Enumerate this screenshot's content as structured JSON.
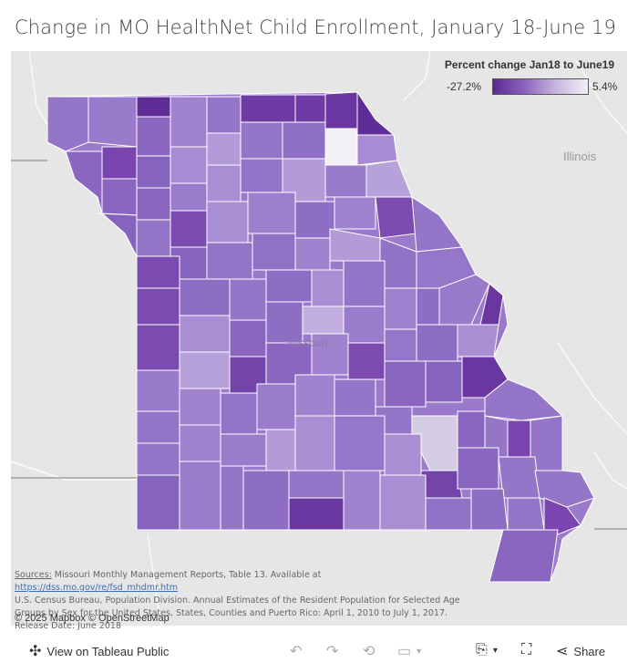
{
  "title": "Change in MO HealthNet Child Enrollment, January 18-June 19",
  "legend": {
    "title": "Percent change Jan18 to June19",
    "min_label": "-27.2%",
    "max_label": "5.4%",
    "colors": [
      "#5b2a91",
      "#8c63bd",
      "#c7b6de",
      "#f2f0f6"
    ]
  },
  "map_labels": {
    "illinois": "Illinois",
    "missouri": "Missouri"
  },
  "sources": {
    "label": "Sources:",
    "line1": " Missouri Monthly Management Reports, Table 13.  Available at ",
    "link": "https://dss.mo.gov/re/fsd_mhdmr.htm",
    "line2": "U.S. Census Bureau, Population Division. Annual Estimates of the Resident Population for Selected Age Groups by Sex for the United States, States, Counties and Puerto Rico: April 1, 2010 to July 1, 2017.  Release Date: June 2018"
  },
  "attribution": "© 2025 Mapbox  © OpenStreetMap",
  "toolbar": {
    "view_label": "View on Tableau Public",
    "share_label": "Share"
  },
  "colors": {
    "map_background": "#e6e6e6",
    "county_border": "#ffffff"
  }
}
